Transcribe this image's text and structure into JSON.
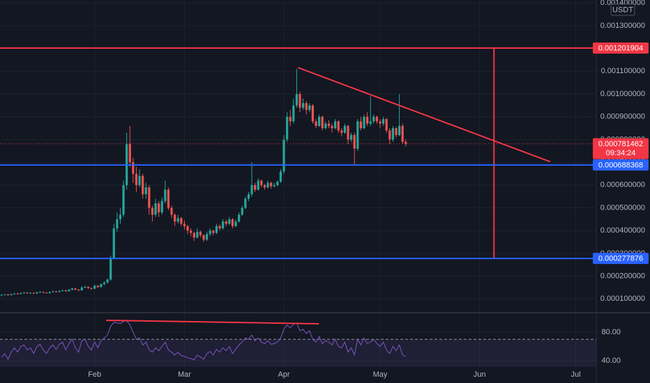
{
  "chart_data": {
    "type": "candlestick",
    "currency": "USDT",
    "up_color": "#26a69a",
    "down_color": "#ef5350",
    "grid": true,
    "xlim": [
      -0.5,
      185.4
    ],
    "xticks": [
      {
        "value": 29,
        "label": "Feb"
      },
      {
        "value": 57,
        "label": "Mar"
      },
      {
        "value": 88,
        "label": "Apr"
      },
      {
        "value": 118,
        "label": "May"
      },
      {
        "value": 149,
        "label": "Jun"
      },
      {
        "value": 179,
        "label": "Jul"
      }
    ],
    "ylim": [
      4.28e-05,
      0.001413
    ],
    "yticks": [
      {
        "value": 0.0001,
        "label": "0.000100000"
      },
      {
        "value": 0.0002,
        "label": "0.000200000"
      },
      {
        "value": 0.0003,
        "label": "0.000300000"
      },
      {
        "value": 0.0004,
        "label": "0.000400000"
      },
      {
        "value": 0.0005,
        "label": "0.000500000"
      },
      {
        "value": 0.0006,
        "label": "0.000600000"
      },
      {
        "value": 0.0007,
        "label": "0.000700000"
      },
      {
        "value": 0.0008,
        "label": "0.000800000"
      },
      {
        "value": 0.0009,
        "label": "0.000900000"
      },
      {
        "value": 0.001,
        "label": "0.001000000"
      },
      {
        "value": 0.0011,
        "label": "0.001100000"
      },
      {
        "value": 0.0012,
        "label": "0.001200000"
      },
      {
        "value": 0.0013,
        "label": "0.001300000"
      },
      {
        "value": 0.0014,
        "label": "0.001400000"
      }
    ],
    "ohlc": [
      [
        0.000115,
        0.000121,
        0.000112,
        0.000118
      ],
      [
        0.000118,
        0.000122,
        0.000116,
        0.00012
      ],
      [
        0.00012,
        0.000122,
        0.000114,
        0.000117
      ],
      [
        0.000117,
        0.000123,
        0.000115,
        0.000121
      ],
      [
        0.000121,
        0.000126,
        0.000119,
        0.000124
      ],
      [
        0.000124,
        0.000126,
        0.000119,
        0.000122
      ],
      [
        0.000122,
        0.000128,
        0.00012,
        0.000126
      ],
      [
        0.000126,
        0.000131,
        0.000124,
        0.000128
      ],
      [
        0.000128,
        0.00013,
        0.000122,
        0.000125
      ],
      [
        0.000125,
        0.000129,
        0.000123,
        0.000127
      ],
      [
        0.000127,
        0.000129,
        0.000121,
        0.000124
      ],
      [
        0.000124,
        0.000131,
        0.000122,
        0.000129
      ],
      [
        0.000129,
        0.000134,
        0.000127,
        0.000131
      ],
      [
        0.000131,
        0.000133,
        0.000125,
        0.000128
      ],
      [
        0.000128,
        0.00013,
        0.000123,
        0.000126
      ],
      [
        0.000126,
        0.000133,
        0.000124,
        0.00013
      ],
      [
        0.00013,
        0.000136,
        0.000128,
        0.000133
      ],
      [
        0.000133,
        0.000135,
        0.000128,
        0.000131
      ],
      [
        0.000131,
        0.000138,
        0.000129,
        0.000135
      ],
      [
        0.000135,
        0.000141,
        0.000133,
        0.000138
      ],
      [
        0.000138,
        0.00014,
        0.000131,
        0.000134
      ],
      [
        0.000134,
        0.000143,
        0.000132,
        0.00014
      ],
      [
        0.00014,
        0.00015,
        0.000138,
        0.000146
      ],
      [
        0.000146,
        0.000148,
        0.000138,
        0.000141
      ],
      [
        0.000141,
        0.000144,
        0.000134,
        0.000138
      ],
      [
        0.000138,
        0.000156,
        0.000136,
        0.00015
      ],
      [
        0.00015,
        0.000158,
        0.000147,
        0.000153
      ],
      [
        0.000153,
        0.000156,
        0.000144,
        0.000148
      ],
      [
        0.000148,
        0.00015,
        0.00014,
        0.000145
      ],
      [
        0.000145,
        0.000162,
        0.000143,
        0.000158
      ],
      [
        0.000158,
        0.000161,
        0.000148,
        0.000152
      ],
      [
        0.000152,
        0.000168,
        0.00015,
        0.000165
      ],
      [
        0.000165,
        0.000178,
        0.00016,
        0.000172
      ],
      [
        0.000172,
        0.00019,
        0.000168,
        0.000185
      ],
      [
        0.000185,
        0.00029,
        0.00018,
        0.00028
      ],
      [
        0.00028,
        0.00043,
        0.000275,
        0.00041
      ],
      [
        0.00041,
        0.00048,
        0.000395,
        0.00045
      ],
      [
        0.00045,
        0.0005,
        0.00043,
        0.00047
      ],
      [
        0.00047,
        0.00062,
        0.00046,
        0.0006
      ],
      [
        0.0006,
        0.00083,
        0.00058,
        0.00078
      ],
      [
        0.00078,
        0.00086,
        0.00068,
        0.0007
      ],
      [
        0.0007,
        0.00072,
        0.00061,
        0.00065
      ],
      [
        0.00065,
        0.00068,
        0.00057,
        0.0006
      ],
      [
        0.0006,
        0.00067,
        0.00059,
        0.00064
      ],
      [
        0.00064,
        0.00065,
        0.00054,
        0.00056
      ],
      [
        0.00056,
        0.00061,
        0.00054,
        0.00059
      ],
      [
        0.00059,
        0.0006,
        0.00047,
        0.0005
      ],
      [
        0.0005,
        0.00051,
        0.00044,
        0.00047
      ],
      [
        0.00047,
        0.00054,
        0.00046,
        0.00052
      ],
      [
        0.00052,
        0.00053,
        0.00046,
        0.00048
      ],
      [
        0.00048,
        0.000545,
        0.00047,
        0.00053
      ],
      [
        0.00053,
        0.00062,
        0.00052,
        0.00058
      ],
      [
        0.00058,
        0.00059,
        0.00049,
        0.0005
      ],
      [
        0.0005,
        0.00051,
        0.000455,
        0.00047
      ],
      [
        0.00047,
        0.000475,
        0.00042,
        0.00044
      ],
      [
        0.00044,
        0.00047,
        0.00043,
        0.000455
      ],
      [
        0.000455,
        0.00046,
        0.00042,
        0.00043
      ],
      [
        0.00043,
        0.000445,
        0.000405,
        0.00042
      ],
      [
        0.00042,
        0.000425,
        0.000385,
        0.0004
      ],
      [
        0.0004,
        0.00041,
        0.000375,
        0.00039
      ],
      [
        0.00039,
        0.000395,
        0.000355,
        0.00037
      ],
      [
        0.00037,
        0.00041,
        0.000365,
        0.000395
      ],
      [
        0.000395,
        0.0004,
        0.00037,
        0.00038
      ],
      [
        0.00038,
        0.000385,
        0.00035,
        0.00036
      ],
      [
        0.00036,
        0.000395,
        0.000355,
        0.000385
      ],
      [
        0.000385,
        0.00041,
        0.000375,
        0.0004
      ],
      [
        0.0004,
        0.000405,
        0.00038,
        0.00039
      ],
      [
        0.00039,
        0.00043,
        0.000385,
        0.00042
      ],
      [
        0.00042,
        0.000428,
        0.0004,
        0.00041
      ],
      [
        0.00041,
        0.00045,
        0.000405,
        0.00044
      ],
      [
        0.00044,
        0.000448,
        0.00042,
        0.00043
      ],
      [
        0.00043,
        0.00046,
        0.000425,
        0.00045
      ],
      [
        0.00045,
        0.000455,
        0.00041,
        0.00042
      ],
      [
        0.00042,
        0.00045,
        0.000415,
        0.00044
      ],
      [
        0.00044,
        0.00048,
        0.000435,
        0.00047
      ],
      [
        0.00047,
        0.00051,
        0.000465,
        0.0005
      ],
      [
        0.0005,
        0.00055,
        0.000495,
        0.00054
      ],
      [
        0.00054,
        0.00057,
        0.00053,
        0.00056
      ],
      [
        0.00056,
        0.0007,
        0.00055,
        0.0006
      ],
      [
        0.0006,
        0.00061,
        0.00057,
        0.00058
      ],
      [
        0.00058,
        0.00063,
        0.000575,
        0.00062
      ],
      [
        0.00062,
        0.000625,
        0.00059,
        0.0006
      ],
      [
        0.0006,
        0.000605,
        0.00058,
        0.00059
      ],
      [
        0.00059,
        0.00062,
        0.000585,
        0.00061
      ],
      [
        0.00061,
        0.000615,
        0.000585,
        0.000595
      ],
      [
        0.000595,
        0.00061,
        0.00059,
        0.0006
      ],
      [
        0.0006,
        0.00062,
        0.000595,
        0.000615
      ],
      [
        0.000615,
        0.00067,
        0.00061,
        0.00066
      ],
      [
        0.00066,
        0.00082,
        0.00065,
        0.0008
      ],
      [
        0.0008,
        0.00092,
        0.00079,
        0.0009
      ],
      [
        0.0009,
        0.00093,
        0.00086,
        0.00088
      ],
      [
        0.00088,
        0.00098,
        0.00087,
        0.00095
      ],
      [
        0.00095,
        0.00111,
        0.00094,
        0.001
      ],
      [
        0.001,
        0.00101,
        0.00092,
        0.00094
      ],
      [
        0.00094,
        0.00098,
        0.00093,
        0.00096
      ],
      [
        0.00096,
        0.00097,
        0.00091,
        0.00093
      ],
      [
        0.00093,
        0.00096,
        0.00092,
        0.00095
      ],
      [
        0.00095,
        0.000955,
        0.00087,
        0.00088
      ],
      [
        0.00088,
        0.00089,
        0.00085,
        0.00086
      ],
      [
        0.00086,
        0.00091,
        0.000855,
        0.0009
      ],
      [
        0.0009,
        0.000905,
        0.00084,
        0.00085
      ],
      [
        0.00085,
        0.00088,
        0.000845,
        0.00087
      ],
      [
        0.00087,
        0.000885,
        0.00085,
        0.00086
      ],
      [
        0.00086,
        0.00087,
        0.00083,
        0.00085
      ],
      [
        0.00085,
        0.00089,
        0.000845,
        0.00088
      ],
      [
        0.00088,
        0.000885,
        0.00083,
        0.00084
      ],
      [
        0.00084,
        0.00085,
        0.000815,
        0.00083
      ],
      [
        0.00083,
        0.00087,
        0.000825,
        0.00086
      ],
      [
        0.00086,
        0.000865,
        0.00078,
        0.0008
      ],
      [
        0.0008,
        0.00083,
        0.00079,
        0.00082
      ],
      [
        0.00082,
        0.00083,
        0.00069,
        0.00076
      ],
      [
        0.00076,
        0.00089,
        0.00075,
        0.00088
      ],
      [
        0.00088,
        0.0009,
        0.00084,
        0.00085
      ],
      [
        0.00085,
        0.00091,
        0.000845,
        0.0009
      ],
      [
        0.0009,
        0.00092,
        0.00086,
        0.00087
      ],
      [
        0.00087,
        0.00099,
        0.00086,
        0.00088
      ],
      [
        0.00088,
        0.00091,
        0.00087,
        0.0009
      ],
      [
        0.0009,
        0.000905,
        0.00087,
        0.00088
      ],
      [
        0.00088,
        0.00089,
        0.00085,
        0.00087
      ],
      [
        0.00087,
        0.0009,
        0.00086,
        0.00089
      ],
      [
        0.00089,
        0.000895,
        0.00083,
        0.00084
      ],
      [
        0.00084,
        0.00085,
        0.00078,
        0.0008
      ],
      [
        0.0008,
        0.00086,
        0.00079,
        0.00085
      ],
      [
        0.00085,
        0.000855,
        0.00081,
        0.00082
      ],
      [
        0.00082,
        0.001,
        0.000815,
        0.00086
      ],
      [
        0.00086,
        0.00087,
        0.00078,
        0.00079
      ],
      [
        0.00079,
        0.0008,
        0.00077,
        0.000781462
      ]
    ],
    "levels": [
      {
        "value": 0.001201904,
        "color": "#f23645"
      },
      {
        "value": 0.000688368,
        "color": "#2962ff"
      },
      {
        "value": 0.000277876,
        "color": "#2962ff"
      }
    ],
    "last_price": {
      "value": 0.000781462,
      "countdown": "09:34:24",
      "color": "#f23645"
    },
    "trendlines": [
      {
        "points": [
          [
            92.4,
            0.001116
          ],
          [
            171,
            0.000703
          ]
        ],
        "color": "#f23645"
      },
      {
        "points": [
          [
            153.5,
            0.001201904
          ],
          [
            153.5,
            0.000688368
          ]
        ],
        "color": "#f23645"
      },
      {
        "points": [
          [
            153.5,
            0.000688368
          ],
          [
            153.5,
            0.000277876
          ]
        ],
        "color": "#f23645"
      }
    ],
    "rsi": {
      "color": "#7e57c2",
      "ylim": [
        31.2,
        104.4
      ],
      "band": [
        30,
        70
      ],
      "band_color": "#7e57c2",
      "yticks": [
        {
          "value": 40,
          "label": "40.00"
        },
        {
          "value": 80,
          "label": "80.00"
        }
      ],
      "values": [
        45,
        50,
        42,
        52,
        58,
        52,
        60,
        62,
        55,
        58,
        50,
        60,
        63,
        55,
        50,
        58,
        62,
        56,
        63,
        66,
        55,
        64,
        70,
        58,
        52,
        68,
        70,
        60,
        55,
        66,
        58,
        68,
        72,
        76,
        88,
        94,
        93,
        92,
        95,
        96,
        90,
        80,
        70,
        72,
        62,
        66,
        55,
        52,
        58,
        54,
        60,
        66,
        55,
        52,
        48,
        52,
        47,
        46,
        44,
        43,
        41,
        48,
        45,
        42,
        50,
        53,
        48,
        56,
        52,
        58,
        54,
        60,
        50,
        56,
        62,
        66,
        72,
        70,
        76,
        68,
        72,
        66,
        64,
        68,
        63,
        64,
        66,
        72,
        84,
        90,
        86,
        91,
        93,
        82,
        84,
        78,
        82,
        70,
        66,
        74,
        64,
        68,
        66,
        62,
        70,
        60,
        58,
        66,
        52,
        58,
        48,
        70,
        62,
        72,
        64,
        66,
        70,
        64,
        60,
        66,
        55,
        50,
        60,
        54,
        62,
        48,
        46
      ],
      "trendlines": [
        {
          "points": [
            [
              32.6,
              96.6
            ],
            [
              98.9,
              91.7
            ]
          ],
          "color": "#f23645"
        }
      ]
    }
  }
}
